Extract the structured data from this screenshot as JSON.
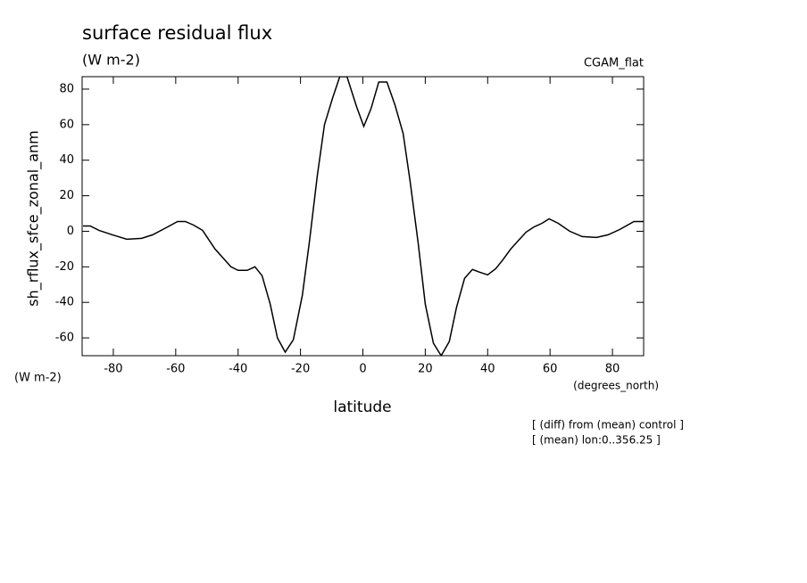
{
  "chart_data": {
    "type": "line",
    "title": "surface residual flux",
    "subtitle": "(W m-2)",
    "dataset_label": "CGAM_flat",
    "y_label": "sh_rflux_sfce_zonal_anm",
    "y_units": "(W m-2)",
    "x_label": "latitude",
    "x_units": "(degrees_north)",
    "annotations": [
      "[ (diff) from (mean) control ]",
      "[ (mean) lon:0..356.25 ]"
    ],
    "x": [
      -89.7,
      -87.4,
      -84.6,
      -80.3,
      -75.7,
      -70.9,
      -67.4,
      -63.1,
      -59.4,
      -56.9,
      -54.3,
      -51.4,
      -47.4,
      -42.3,
      -40,
      -37.1,
      -34.6,
      -32.3,
      -29.7,
      -27.4,
      -24.9,
      -22.3,
      -19.4,
      -17.1,
      -14.6,
      -12.3,
      -9.7,
      -7.4,
      -5.1,
      -2,
      0.3,
      2.6,
      5.1,
      7.7,
      10.3,
      12.9,
      15.1,
      17.7,
      20,
      22.6,
      25.1,
      27.7,
      30,
      32.6,
      35.1,
      37.4,
      40,
      42.6,
      44.9,
      47.4,
      49.7,
      52.3,
      54.9,
      57.4,
      59.7,
      62.6,
      66.3,
      70.3,
      74.9,
      78.6,
      82.3,
      86.9,
      90
    ],
    "series": [
      {
        "color": "#000000",
        "values": [
          3,
          3,
          0.5,
          -2,
          -4.5,
          -4,
          -2,
          2,
          5.5,
          5.5,
          3.5,
          0.5,
          -10,
          -20,
          -22,
          -22,
          -20,
          -25,
          -41,
          -60,
          -68,
          -61,
          -36,
          -5.5,
          31.5,
          60,
          75,
          87,
          87,
          70,
          59,
          69,
          84,
          84,
          71,
          55,
          28.5,
          -6.5,
          -41,
          -63,
          -70,
          -62,
          -43,
          -26.5,
          -21.5,
          -23,
          -24.5,
          -21,
          -16,
          -10,
          -5.5,
          -0.5,
          2.5,
          4.5,
          7,
          4.5,
          0,
          -3,
          -3.5,
          -2,
          1,
          5.5,
          5.5
        ]
      }
    ],
    "xlim": [
      -90,
      90
    ],
    "ylim": [
      -70,
      87
    ],
    "xticks": [
      -80,
      -60,
      -40,
      -20,
      0,
      20,
      40,
      60,
      80
    ],
    "yticks": [
      -60,
      -40,
      -20,
      0,
      20,
      40,
      60,
      80
    ]
  }
}
